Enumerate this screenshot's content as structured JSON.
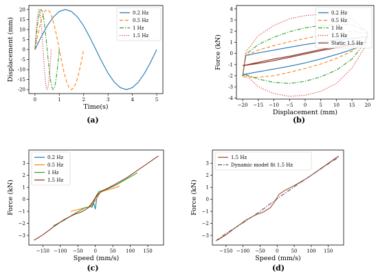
{
  "chart_data": [
    {
      "type": "line",
      "panel_label": "(a)",
      "xlabel": "Time(s)",
      "ylabel": "Displacement (mm)",
      "xlim": [
        -0.25,
        5.25
      ],
      "ylim": [
        -22,
        22
      ],
      "xticks": [
        0,
        1,
        2,
        3,
        4,
        5
      ],
      "yticks": [
        -20,
        -15,
        -10,
        -5,
        0,
        5,
        10,
        15,
        20
      ],
      "grid": false,
      "legend_position": "top-right",
      "series": [
        {
          "name": "0.2 Hz",
          "color": "#1f77b4",
          "style": "solid",
          "x": [
            0,
            0.25,
            0.5,
            0.75,
            1,
            1.25,
            1.5,
            1.75,
            2,
            2.25,
            2.5,
            2.75,
            3,
            3.25,
            3.5,
            3.75,
            4,
            4.25,
            4.5,
            4.75,
            5
          ],
          "y": [
            0,
            6.2,
            11.8,
            16.2,
            19,
            20,
            19,
            16.2,
            11.8,
            6.2,
            0,
            -6.2,
            -11.8,
            -16.2,
            -19,
            -20,
            -19,
            -16.2,
            -11.8,
            -6.2,
            0
          ]
        },
        {
          "name": "0.5 Hz",
          "color": "#ff7f0e",
          "style": "dashed",
          "x": [
            0,
            0.1,
            0.2,
            0.3,
            0.4,
            0.5,
            0.6,
            0.7,
            0.8,
            0.9,
            1,
            1.1,
            1.2,
            1.3,
            1.4,
            1.5,
            1.6,
            1.7,
            1.8,
            1.9,
            2
          ],
          "y": [
            0,
            6.2,
            11.8,
            16.2,
            19,
            20,
            19,
            16.2,
            11.8,
            6.2,
            0,
            -6.2,
            -11.8,
            -16.2,
            -19,
            -20,
            -19,
            -16.2,
            -11.8,
            -6.2,
            0
          ]
        },
        {
          "name": "1 Hz",
          "color": "#2ca02c",
          "style": "dashdot",
          "x": [
            0,
            0.05,
            0.1,
            0.15,
            0.2,
            0.25,
            0.3,
            0.35,
            0.4,
            0.45,
            0.5,
            0.55,
            0.6,
            0.65,
            0.7,
            0.75,
            0.8,
            0.85,
            0.9,
            0.95,
            1
          ],
          "y": [
            0,
            6.2,
            11.8,
            16.2,
            19,
            20,
            19,
            16.2,
            11.8,
            6.2,
            0,
            -6.2,
            -11.8,
            -16.2,
            -19,
            -20,
            -19,
            -16.2,
            -11.8,
            -6.2,
            0
          ]
        },
        {
          "name": "1.5 Hz",
          "color": "#d62728",
          "style": "dotted",
          "x": [
            0,
            0.033,
            0.067,
            0.1,
            0.133,
            0.167,
            0.2,
            0.233,
            0.267,
            0.3,
            0.333,
            0.367,
            0.4,
            0.433,
            0.467,
            0.5,
            0.533,
            0.567,
            0.6,
            0.633,
            0.667
          ],
          "y": [
            0,
            6.2,
            11.8,
            16.2,
            19,
            20,
            19,
            16.2,
            11.8,
            6.2,
            0,
            -6.2,
            -11.8,
            -16.2,
            -19,
            -20,
            -19,
            -16.2,
            -11.8,
            -6.2,
            0
          ]
        }
      ]
    },
    {
      "type": "line",
      "panel_label": "(b)",
      "xlabel": "Displacement (mm)",
      "ylabel": "Force (kN)",
      "xlim": [
        -22,
        22
      ],
      "ylim": [
        -4.1,
        4.3
      ],
      "xticks": [
        -20,
        -15,
        -10,
        -5,
        0,
        5,
        10,
        15,
        20
      ],
      "yticks": [
        -4,
        -3,
        -2,
        -1,
        0,
        1,
        2,
        3,
        4
      ],
      "grid": false,
      "legend_position": "top-right",
      "series": [
        {
          "name": "0.2 Hz",
          "color": "#1f77b4",
          "style": "solid",
          "x": [
            -20,
            -19,
            -15,
            -10,
            -5,
            0,
            5,
            10,
            15,
            20,
            20,
            19,
            15,
            10,
            5,
            0,
            -5,
            -10,
            -15,
            -20,
            -20
          ],
          "y": [
            -2.0,
            -0.2,
            0.05,
            0.3,
            0.55,
            0.8,
            1.0,
            1.2,
            1.35,
            1.5,
            1.5,
            0.9,
            0.35,
            -0.1,
            -0.5,
            -0.85,
            -1.15,
            -1.4,
            -1.65,
            -1.9,
            -2.0
          ]
        },
        {
          "name": "0.5 Hz",
          "color": "#ff7f0e",
          "style": "dashed",
          "x": [
            -20,
            -19,
            -15,
            -10,
            -5,
            0,
            5,
            10,
            15,
            20,
            20,
            19,
            15,
            10,
            5,
            0,
            -5,
            -10,
            -15,
            -20,
            -20
          ],
          "y": [
            -2.1,
            -0.2,
            0.3,
            0.7,
            1.05,
            1.35,
            1.6,
            1.85,
            2.0,
            1.8,
            1.8,
            1.0,
            0.2,
            -0.45,
            -0.95,
            -1.35,
            -1.7,
            -2.0,
            -2.15,
            -2.1,
            -2.1
          ]
        },
        {
          "name": "1 Hz",
          "color": "#2ca02c",
          "style": "dashdot",
          "x": [
            -20,
            -19,
            -15,
            -10,
            -5,
            0,
            5,
            10,
            15,
            19,
            20,
            19,
            15,
            10,
            5,
            0,
            -5,
            -10,
            -15,
            -19,
            -20
          ],
          "y": [
            -2.0,
            -0.1,
            0.8,
            1.45,
            1.95,
            2.3,
            2.5,
            2.6,
            2.55,
            2.1,
            1.9,
            0.9,
            -0.5,
            -1.5,
            -2.1,
            -2.5,
            -2.7,
            -2.6,
            -2.3,
            -1.9,
            -2.0
          ]
        },
        {
          "name": "1.5 Hz",
          "color": "#d62728",
          "style": "dotted",
          "x": [
            -20,
            -19,
            -15,
            -10,
            -5,
            0,
            5,
            10,
            15,
            19,
            20,
            19,
            15,
            10,
            5,
            0,
            -5,
            -10,
            -15,
            -19,
            -20
          ],
          "y": [
            -2.0,
            0.1,
            1.6,
            2.5,
            3.1,
            3.4,
            3.5,
            3.5,
            3.1,
            2.1,
            1.8,
            0.5,
            -1.3,
            -2.7,
            -3.4,
            -3.75,
            -3.85,
            -3.6,
            -3.0,
            -1.9,
            -2.0
          ]
        },
        {
          "name": "Static 1.5 Hz",
          "color": "#8c2d1e",
          "style": "solid",
          "x": [
            -20,
            -15,
            -10,
            -5,
            0,
            5,
            10,
            15,
            20,
            15,
            10,
            5,
            0,
            -5,
            -10,
            -15,
            -20
          ],
          "y": [
            -1.1,
            -0.9,
            -0.65,
            -0.35,
            -0.05,
            0.25,
            0.5,
            0.75,
            1.0,
            0.85,
            0.6,
            0.35,
            0.05,
            -0.25,
            -0.5,
            -0.8,
            -1.1
          ]
        }
      ]
    },
    {
      "type": "line",
      "panel_label": "(c)",
      "xlabel": "Speed (mm/s)",
      "ylabel": "Force (kN)",
      "xlim": [
        -190,
        195
      ],
      "ylim": [
        -3.8,
        4.1
      ],
      "xticks": [
        -150,
        -100,
        -50,
        0,
        50,
        100,
        150
      ],
      "yticks": [
        -3,
        -2,
        -1,
        0,
        1,
        2,
        3
      ],
      "grid": false,
      "legend_position": "top-left",
      "series": [
        {
          "name": "0.2 Hz",
          "color": "#1f77b4",
          "style": "solid",
          "x": [
            -10,
            -5,
            0,
            5,
            10,
            15,
            20,
            25
          ],
          "y": [
            -0.7,
            -0.3,
            -0.8,
            0.3,
            0.4,
            0.6,
            0.7,
            0.8
          ]
        },
        {
          "name": "0.5 Hz",
          "color": "#ff7f0e",
          "style": "solid",
          "x": [
            -70,
            -50,
            -30,
            -15,
            0,
            15,
            30,
            50,
            70
          ],
          "y": [
            -1.0,
            -0.85,
            -0.7,
            -0.6,
            -0.1,
            0.6,
            0.75,
            0.9,
            1.1
          ]
        },
        {
          "name": "1 Hz",
          "color": "#2ca02c",
          "style": "solid",
          "x": [
            -120,
            -90,
            -60,
            -30,
            -10,
            0,
            10,
            30,
            60,
            90,
            120
          ],
          "y": [
            -2.2,
            -1.75,
            -1.2,
            -0.7,
            -0.6,
            0.1,
            0.65,
            0.8,
            1.2,
            1.7,
            2.2
          ]
        },
        {
          "name": "1.5 Hz",
          "color": "#8c2d1e",
          "style": "solid",
          "x": [
            -175,
            -150,
            -120,
            -90,
            -60,
            -40,
            -20,
            -5,
            5,
            20,
            40,
            60,
            90,
            120,
            150,
            180
          ],
          "y": [
            -3.4,
            -2.95,
            -2.3,
            -1.7,
            -1.25,
            -1.05,
            -0.7,
            -0.1,
            0.4,
            0.7,
            1.0,
            1.3,
            1.8,
            2.4,
            3.0,
            3.6
          ]
        }
      ]
    },
    {
      "type": "line",
      "panel_label": "(d)",
      "xlabel": "Speed (mm/s)",
      "ylabel": "Force (kN)",
      "xlim": [
        -190,
        195
      ],
      "ylim": [
        -3.8,
        4.1
      ],
      "xticks": [
        -150,
        -100,
        -50,
        0,
        50,
        100,
        150
      ],
      "yticks": [
        -3,
        -2,
        -1,
        0,
        1,
        2,
        3
      ],
      "grid": false,
      "legend_position": "top-left",
      "series": [
        {
          "name": "1.5 Hz",
          "color": "#a8442e",
          "style": "solid",
          "x": [
            -175,
            -150,
            -120,
            -90,
            -60,
            -40,
            -20,
            -5,
            5,
            20,
            40,
            60,
            90,
            120,
            150,
            180
          ],
          "y": [
            -3.4,
            -2.95,
            -2.3,
            -1.7,
            -1.25,
            -1.05,
            -0.7,
            -0.1,
            0.4,
            0.7,
            1.0,
            1.3,
            1.8,
            2.4,
            3.0,
            3.6
          ]
        },
        {
          "name": "Dynamic model fit 1.5 Hz",
          "color": "#555555",
          "style": "dashdot",
          "x": [
            -180,
            -150,
            -100,
            -50,
            0,
            50,
            100,
            150,
            180
          ],
          "y": [
            -3.45,
            -2.85,
            -1.95,
            -1.0,
            0.05,
            1.05,
            2.0,
            2.95,
            3.5
          ]
        }
      ]
    }
  ]
}
